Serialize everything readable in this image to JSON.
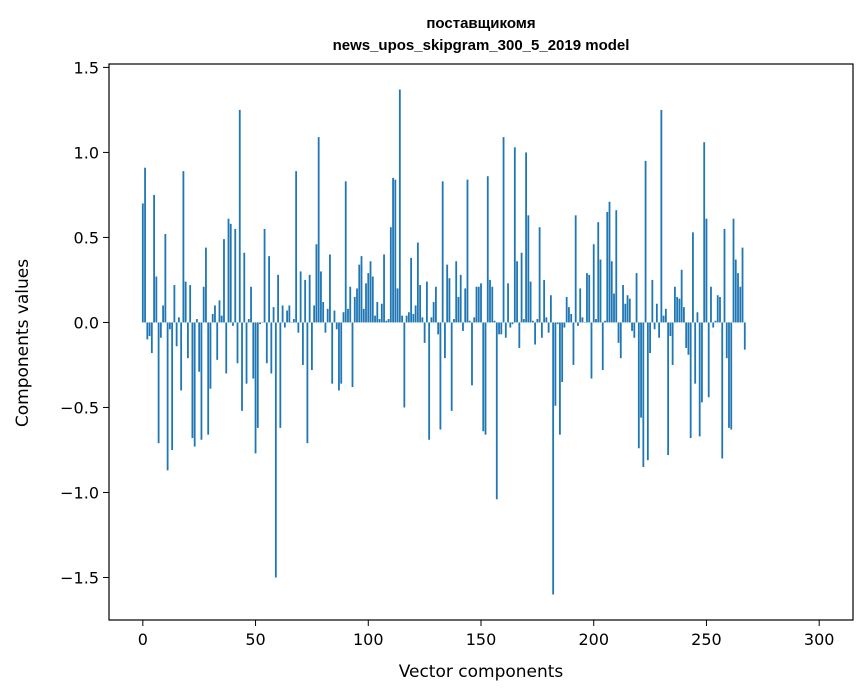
{
  "chart_data": {
    "type": "bar",
    "title": "поставщикомя",
    "subtitle": "news_upos_skipgram_300_5_2019 model",
    "xlabel": "Vector components",
    "ylabel": "Components values",
    "xlim": [
      -15,
      315
    ],
    "ylim": [
      -1.75,
      1.52
    ],
    "xticks": [
      0,
      50,
      100,
      150,
      200,
      250,
      300
    ],
    "yticks": [
      -1.5,
      -1.0,
      -0.5,
      0.0,
      0.5,
      1.0,
      1.5
    ],
    "xtick_labels": [
      "0",
      "50",
      "100",
      "150",
      "200",
      "250",
      "300"
    ],
    "ytick_labels": [
      "−1.5",
      "−1.0",
      "−0.5",
      "0.0",
      "0.5",
      "1.0",
      "1.5"
    ],
    "grid": false,
    "bar_color": "#1f77b4",
    "values": [
      0.7,
      0.91,
      -0.1,
      -0.08,
      -0.18,
      0.75,
      0.27,
      -0.71,
      -0.09,
      0.1,
      0.52,
      -0.87,
      -0.04,
      -0.75,
      0.22,
      -0.14,
      0.03,
      -0.4,
      0.89,
      0.24,
      -0.21,
      0.22,
      -0.68,
      -0.73,
      0.02,
      -0.29,
      -0.69,
      0.21,
      0.44,
      -0.66,
      -0.39,
      0.05,
      0.1,
      -0.22,
      0.13,
      0.04,
      0.49,
      -0.3,
      0.61,
      0.58,
      -0.02,
      0.55,
      -0.24,
      1.25,
      -0.52,
      0.41,
      -0.36,
      0.02,
      0.21,
      -0.33,
      -0.77,
      -0.62,
      -0.01,
      0.0,
      0.55,
      -0.24,
      0.39,
      -0.3,
      0.09,
      -1.5,
      0.28,
      -0.62,
      0.1,
      -0.03,
      0.07,
      0.1,
      0.0,
      0.02,
      0.89,
      -0.06,
      0.3,
      -0.25,
      0.25,
      -0.71,
      0.28,
      -0.28,
      0.1,
      0.46,
      1.09,
      0.3,
      0.12,
      -0.06,
      0.08,
      0.4,
      -0.36,
      0.07,
      -0.04,
      -0.4,
      -0.36,
      0.06,
      0.83,
      0.08,
      0.21,
      -0.38,
      0.15,
      0.2,
      0.34,
      0.39,
      0.08,
      0.23,
      0.29,
      0.36,
      0.27,
      0.04,
      0.12,
      0.02,
      0.11,
      0.4,
      0.01,
      0.02,
      0.56,
      0.85,
      0.84,
      0.2,
      1.37,
      0.04,
      -0.5,
      0.04,
      0.06,
      0.38,
      0.05,
      0.1,
      0.47,
      0.22,
      0.03,
      -0.12,
      0.24,
      -0.69,
      0.03,
      0.12,
      0.21,
      -0.07,
      -0.63,
      0.83,
      -0.21,
      0.34,
      0.26,
      -0.52,
      0.02,
      0.36,
      0.15,
      0.28,
      -0.05,
      0.2,
      0.84,
      0.01,
      -0.37,
      0.03,
      0.21,
      0.21,
      0.23,
      -0.64,
      -0.66,
      0.86,
      0.25,
      0.21,
      0.01,
      -1.04,
      -0.07,
      -0.07,
      1.09,
      -0.09,
      0.23,
      -0.03,
      -0.01,
      1.03,
      0.36,
      -0.15,
      0.41,
      0.02,
      1.0,
      0.63,
      0.24,
      0.01,
      -0.13,
      0.02,
      0.56,
      -0.09,
      0.25,
      0.03,
      -0.06,
      0.16,
      -1.6,
      -0.49,
      -0.01,
      -0.66,
      -0.35,
      -0.03,
      0.15,
      0.09,
      0.05,
      -0.25,
      0.63,
      -0.02,
      0.2,
      0.03,
      0.0,
      0.29,
      0.28,
      -0.33,
      0.46,
      0.02,
      0.59,
      0.37,
      -0.28,
      0.01,
      0.65,
      0.71,
      0.36,
      0.17,
      0.66,
      -0.12,
      -0.21,
      0.22,
      0.11,
      0.16,
      0.14,
      -0.05,
      -0.09,
      0.29,
      -0.74,
      -0.56,
      -0.85,
      0.95,
      -0.81,
      -0.18,
      0.25,
      -0.04,
      0.11,
      -0.09,
      1.25,
      0.04,
      0.08,
      -0.78,
      -0.08,
      -0.25,
      0.21,
      0.15,
      0.14,
      0.31,
      0.09,
      -0.15,
      -0.19,
      -0.68,
      0.53,
      -0.36,
      0.06,
      -0.67,
      -0.47,
      1.06,
      0.61,
      -0.44,
      0.21,
      -0.03,
      0.01,
      0.16,
      0.15,
      -0.8,
      0.55,
      -0.21,
      -0.62,
      -0.63,
      0.61,
      0.37,
      0.29,
      0.21,
      0.44,
      -0.16
    ],
    "bar_heights_note": ""
  }
}
